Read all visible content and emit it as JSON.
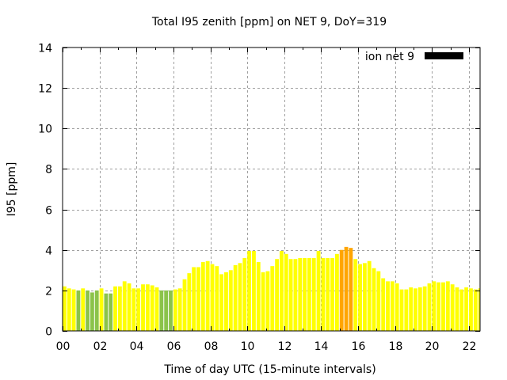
{
  "chart_data": {
    "type": "bar",
    "title": "Total I95 zenith [ppm] on NET 9, DoY=319",
    "xlabel": "Time of day UTC (15-minute intervals)",
    "ylabel": "I95 [ppm]",
    "ylim": [
      0,
      14
    ],
    "xlim_hours": [
      0,
      22.75
    ],
    "interval_minutes": 15,
    "grid": true,
    "legend": {
      "label": "ion net 9",
      "color": "#000000",
      "placement": "top-right"
    },
    "x_tick_labels": [
      "00",
      "02",
      "04",
      "06",
      "08",
      "10",
      "12",
      "14",
      "16",
      "18",
      "20",
      "22"
    ],
    "x_tick_hours": [
      0,
      2,
      4,
      6,
      8,
      10,
      12,
      14,
      16,
      18,
      20,
      22
    ],
    "y_tick_labels": [
      "0",
      "2",
      "4",
      "6",
      "8",
      "10",
      "12",
      "14"
    ],
    "y_tick_values": [
      0,
      2,
      4,
      6,
      8,
      10,
      12,
      14
    ],
    "colors": {
      "yellow": "#ffff00",
      "green": "#8bc34a",
      "orange": "#ffa500"
    },
    "values": [
      2.2,
      2.1,
      2.05,
      2.0,
      2.1,
      2.0,
      1.9,
      2.0,
      2.1,
      1.85,
      1.85,
      2.2,
      2.2,
      2.45,
      2.35,
      2.1,
      2.1,
      2.3,
      2.3,
      2.25,
      2.15,
      2.0,
      2.0,
      2.0,
      2.05,
      2.1,
      2.55,
      2.85,
      3.15,
      3.15,
      3.4,
      3.45,
      3.3,
      3.2,
      2.8,
      2.9,
      3.0,
      3.25,
      3.35,
      3.6,
      3.95,
      3.95,
      3.4,
      2.9,
      2.95,
      3.2,
      3.55,
      3.95,
      3.8,
      3.55,
      3.55,
      3.6,
      3.6,
      3.6,
      3.6,
      3.95,
      3.6,
      3.6,
      3.6,
      3.8,
      4.0,
      4.15,
      4.1,
      3.55,
      3.3,
      3.35,
      3.45,
      3.1,
      2.95,
      2.6,
      2.45,
      2.45,
      2.35,
      2.05,
      2.05,
      2.15,
      2.1,
      2.15,
      2.2,
      2.35,
      2.45,
      2.4,
      2.4,
      2.45,
      2.3,
      2.15,
      2.05,
      2.15,
      2.1,
      2.05,
      2.1
    ],
    "bar_colors": [
      "yellow",
      "yellow",
      "yellow",
      "green",
      "yellow",
      "green",
      "green",
      "green",
      "yellow",
      "green",
      "green",
      "yellow",
      "yellow",
      "yellow",
      "yellow",
      "yellow",
      "yellow",
      "yellow",
      "yellow",
      "yellow",
      "yellow",
      "green",
      "green",
      "green",
      "yellow",
      "yellow",
      "yellow",
      "yellow",
      "yellow",
      "yellow",
      "yellow",
      "yellow",
      "yellow",
      "yellow",
      "yellow",
      "yellow",
      "yellow",
      "yellow",
      "yellow",
      "yellow",
      "yellow",
      "yellow",
      "yellow",
      "yellow",
      "yellow",
      "yellow",
      "yellow",
      "yellow",
      "yellow",
      "yellow",
      "yellow",
      "yellow",
      "yellow",
      "yellow",
      "yellow",
      "yellow",
      "yellow",
      "yellow",
      "yellow",
      "yellow",
      "orange",
      "orange",
      "orange",
      "yellow",
      "yellow",
      "yellow",
      "yellow",
      "yellow",
      "yellow",
      "yellow",
      "yellow",
      "yellow",
      "yellow",
      "yellow",
      "yellow",
      "yellow",
      "yellow",
      "yellow",
      "yellow",
      "yellow",
      "yellow",
      "yellow",
      "yellow",
      "yellow",
      "yellow",
      "yellow",
      "yellow",
      "yellow",
      "yellow",
      "yellow",
      "yellow"
    ]
  }
}
